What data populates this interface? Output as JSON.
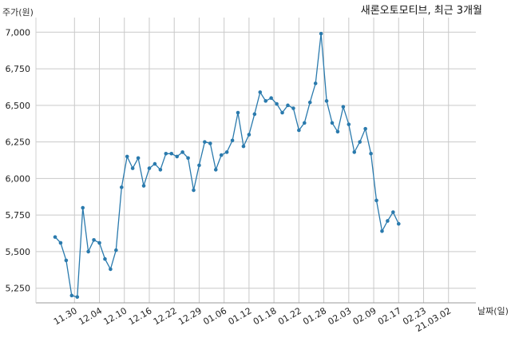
{
  "chart_data": {
    "type": "line",
    "title": "새론오토모티브, 최근 3개월",
    "ylabel": "주가(원)",
    "xlabel": "날짜(일)",
    "ylim": [
      5150,
      7100
    ],
    "yticks": [
      5250,
      5500,
      5750,
      6000,
      6250,
      6500,
      6750,
      7000
    ],
    "ytick_labels": [
      "5,250",
      "5,500",
      "5,750",
      "6,000",
      "6,250",
      "6,500",
      "6,750",
      "7,000"
    ],
    "xtick_labels": [
      "11.30",
      "12.04",
      "12.10",
      "12.16",
      "12.22",
      "12.29",
      "01.06",
      "01.12",
      "01.18",
      "01.22",
      "01.28",
      "02.03",
      "02.09",
      "02.17",
      "02.23",
      "21.03.02"
    ],
    "xtick_positions": [
      3.5,
      8,
      12.5,
      17,
      21.5,
      26,
      30.5,
      35,
      39.5,
      44,
      48.5,
      53,
      57.5,
      62,
      66.5,
      71
    ],
    "grid": true,
    "line_color": "#2a7aad",
    "series": [
      {
        "values": [
          5600,
          5560,
          5440,
          5200,
          5190,
          5800,
          5500,
          5580,
          5560,
          5450,
          5380,
          5510,
          5940,
          6150,
          6070,
          6140,
          5950,
          6070,
          6100,
          6060,
          6170,
          6170,
          6150,
          6180,
          6140,
          5920,
          6090,
          6250,
          6240,
          6060,
          6160,
          6180,
          6260,
          6450,
          6220,
          6300,
          6440,
          6590,
          6530,
          6550,
          6510,
          6450,
          6500,
          6480,
          6330,
          6380,
          6520,
          6650,
          6990,
          6530,
          6380,
          6320,
          6490,
          6370,
          6180,
          6250,
          6340,
          6170,
          5850,
          5640,
          5710,
          5770,
          5690
        ]
      }
    ]
  }
}
